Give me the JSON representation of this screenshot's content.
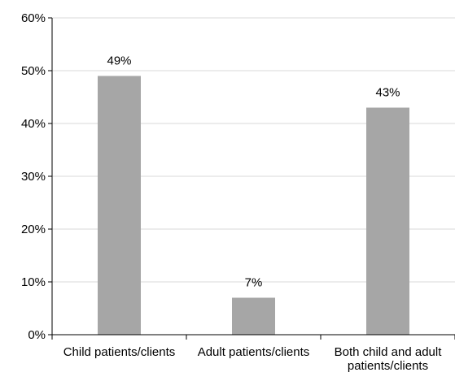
{
  "chart_data": {
    "type": "bar",
    "categories": [
      [
        "Child patients/clients"
      ],
      [
        "Adult patients/clients"
      ],
      [
        "Both child and adult",
        "patients/clients"
      ]
    ],
    "values": [
      49,
      7,
      43
    ],
    "data_labels": [
      "49%",
      "7%",
      "43%"
    ],
    "title": "",
    "xlabel": "",
    "ylabel": "",
    "ylim": [
      0,
      60
    ],
    "yticks": [
      0,
      10,
      20,
      30,
      40,
      50,
      60
    ],
    "ytick_labels": [
      "0%",
      "10%",
      "20%",
      "30%",
      "40%",
      "50%",
      "60%"
    ],
    "grid": true,
    "legend": "none",
    "colors": {
      "bar": "#a6a6a6",
      "grid": "#d9d9d9",
      "axis": "#000000"
    }
  }
}
